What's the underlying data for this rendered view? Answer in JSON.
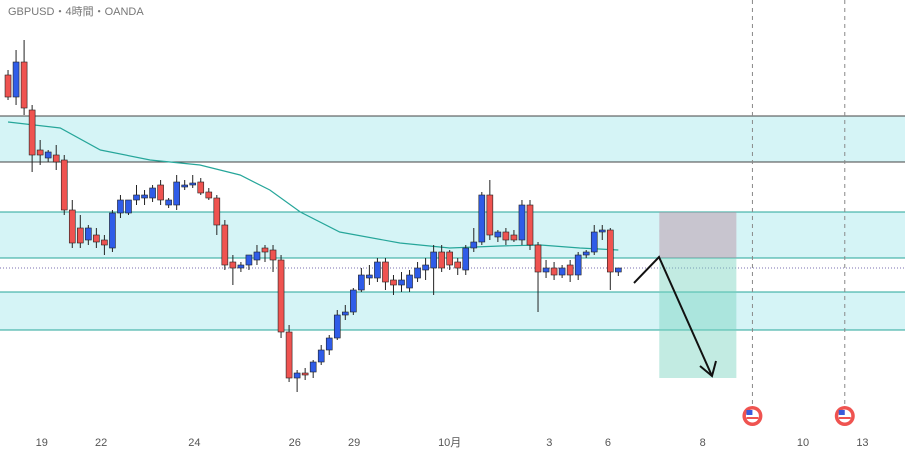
{
  "chart_data": {
    "type": "candlestick",
    "title": "GBPUSD・4時間・OANDA",
    "xlim": [
      -1.0,
      111.7
    ],
    "ylim": [
      0,
      430
    ],
    "xticks": [
      {
        "value": 4.2,
        "label": "19"
      },
      {
        "value": 11.6,
        "label": "22"
      },
      {
        "value": 23.2,
        "label": "24"
      },
      {
        "value": 35.7,
        "label": "26"
      },
      {
        "value": 43.1,
        "label": "29"
      },
      {
        "value": 55,
        "label": "10月"
      },
      {
        "value": 67.4,
        "label": "3"
      },
      {
        "value": 74.7,
        "label": "6"
      },
      {
        "value": 86.5,
        "label": "8"
      },
      {
        "value": 99,
        "label": "10"
      },
      {
        "value": 106.4,
        "label": "13"
      }
    ],
    "up_color": "#2f5ce8",
    "down_color": "#ef5350",
    "candles": {
      "open": [
        355,
        333,
        368,
        320,
        280,
        272,
        275,
        270,
        220,
        202,
        190,
        195,
        190,
        182,
        217,
        217,
        230,
        232,
        232,
        245,
        225,
        225,
        243,
        245,
        248,
        238,
        232,
        205,
        168,
        162,
        165,
        170,
        182,
        180,
        170,
        98,
        52,
        57,
        58,
        68,
        80,
        92,
        115,
        118,
        140,
        152,
        152,
        168,
        150,
        145,
        142,
        152,
        160,
        162,
        178,
        178,
        168,
        160,
        182,
        188,
        235,
        193,
        198,
        195,
        190,
        225,
        185,
        158,
        162,
        155,
        165,
        155,
        175,
        178,
        198,
        200,
        158
      ],
      "high": [
        360,
        380,
        390,
        325,
        290,
        280,
        285,
        275,
        230,
        215,
        205,
        202,
        195,
        220,
        235,
        225,
        245,
        240,
        245,
        250,
        232,
        255,
        250,
        255,
        252,
        242,
        235,
        210,
        175,
        168,
        175,
        185,
        185,
        185,
        175,
        105,
        60,
        62,
        70,
        85,
        95,
        120,
        125,
        142,
        162,
        165,
        172,
        172,
        155,
        158,
        160,
        168,
        172,
        185,
        185,
        180,
        172,
        185,
        202,
        238,
        250,
        200,
        202,
        200,
        230,
        230,
        188,
        170,
        168,
        165,
        170,
        178,
        180,
        205,
        205,
        202,
        162
      ],
      "low": [
        330,
        325,
        315,
        258,
        265,
        268,
        260,
        215,
        182,
        182,
        185,
        182,
        175,
        178,
        212,
        215,
        225,
        225,
        228,
        225,
        222,
        220,
        240,
        242,
        235,
        230,
        195,
        160,
        145,
        158,
        160,
        165,
        168,
        158,
        92,
        48,
        38,
        50,
        52,
        65,
        75,
        90,
        110,
        115,
        138,
        145,
        148,
        140,
        135,
        138,
        138,
        148,
        150,
        135,
        158,
        160,
        155,
        155,
        178,
        185,
        190,
        188,
        185,
        188,
        185,
        180,
        118,
        152,
        150,
        152,
        148,
        150,
        172,
        175,
        190,
        140,
        154
      ],
      "close": [
        333,
        368,
        322,
        275,
        275,
        278,
        268,
        220,
        187,
        187,
        202,
        188,
        185,
        217,
        230,
        230,
        235,
        235,
        242,
        230,
        230,
        248,
        245,
        247,
        237,
        232,
        205,
        165,
        162,
        165,
        175,
        178,
        178,
        170,
        98,
        52,
        57,
        55,
        68,
        80,
        92,
        115,
        118,
        140,
        155,
        155,
        168,
        148,
        145,
        150,
        155,
        162,
        165,
        178,
        162,
        165,
        162,
        182,
        188,
        235,
        195,
        198,
        190,
        190,
        225,
        185,
        158,
        162,
        155,
        162,
        155,
        175,
        178,
        198,
        200,
        158,
        162
      ]
    },
    "ma": {
      "color": "#26a69a",
      "x": [
        0,
        6.5,
        11.5,
        17.7,
        23.9,
        28.9,
        32.6,
        36.4,
        41.3,
        48.8,
        55,
        61.3,
        66.3,
        71.2,
        76
      ],
      "values": [
        308,
        302,
        280,
        270,
        265,
        255,
        240,
        218,
        198,
        187,
        182,
        184,
        185,
        182,
        180
      ]
    },
    "zones": [
      [
        268,
        314
      ],
      [
        172,
        218
      ],
      [
        100,
        138
      ]
    ],
    "zone_colors": [
      "#444444",
      "#26a69a",
      "#26a69a"
    ],
    "current_price": 162,
    "position": {
      "x": [
        81.1,
        90.7
      ],
      "entry": 172,
      "stop": 218,
      "target": 52
    },
    "events_x": [
      92.7,
      104.2
    ]
  }
}
